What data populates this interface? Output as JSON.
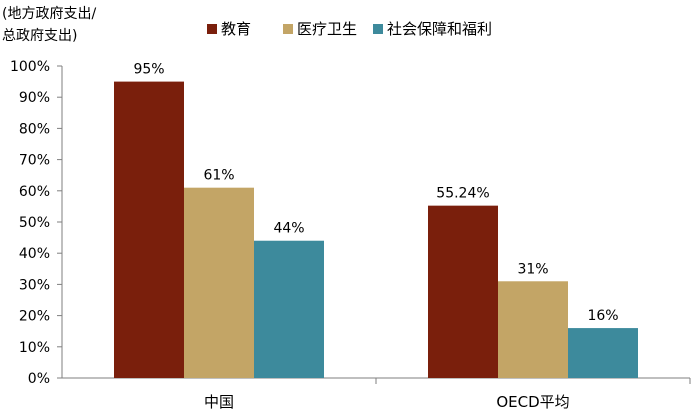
{
  "chart_data": {
    "type": "bar",
    "ylabel": [
      "(地方政府支出/",
      "总政府支出)"
    ],
    "categories": [
      "中国",
      "OECD平均"
    ],
    "series": [
      {
        "name": "教育",
        "color": "#7a1f0c",
        "values": [
          95,
          55.24
        ],
        "labels": [
          "95%",
          "55.24%"
        ]
      },
      {
        "name": "医疗卫生",
        "color": "#c3a566",
        "values": [
          61,
          31
        ],
        "labels": [
          "61%",
          "31%"
        ]
      },
      {
        "name": "社会保障和福利",
        "color": "#3d8a9c",
        "values": [
          44,
          16
        ],
        "labels": [
          "44%",
          "16%"
        ]
      }
    ],
    "ylim": [
      0,
      100
    ],
    "yticks": [
      "0%",
      "10%",
      "20%",
      "30%",
      "40%",
      "50%",
      "60%",
      "70%",
      "80%",
      "90%",
      "100%"
    ],
    "grid": false,
    "legend_position": "top"
  }
}
